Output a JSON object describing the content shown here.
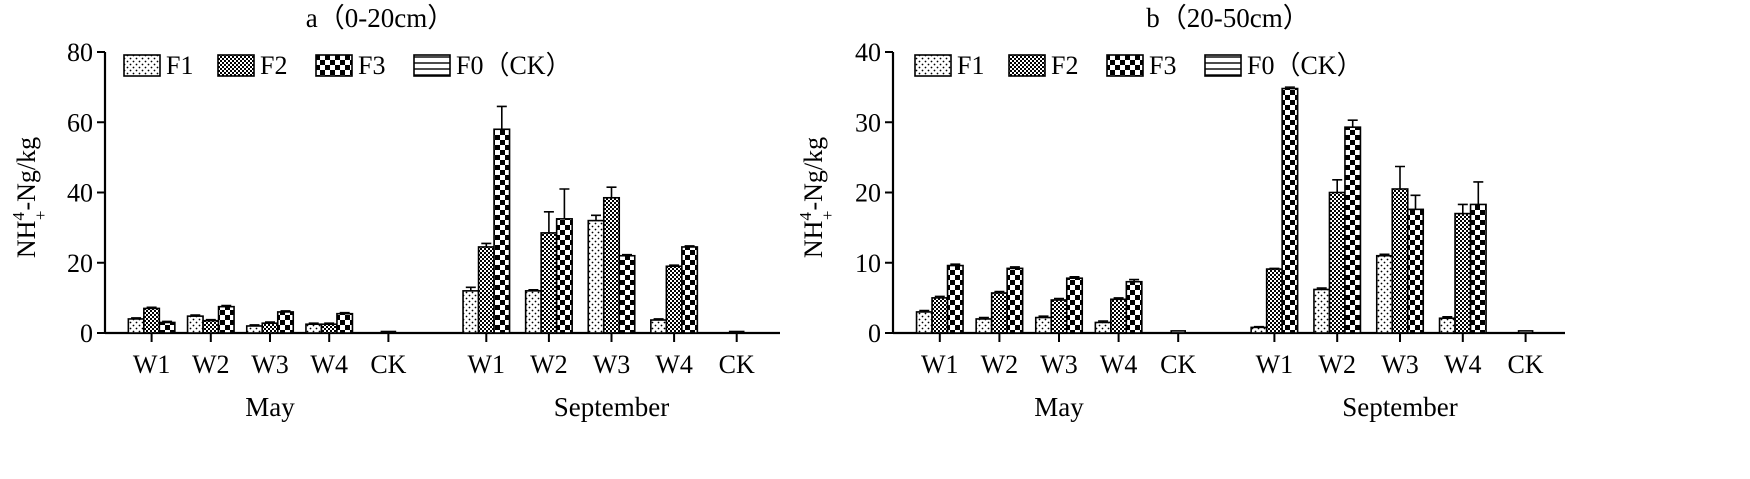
{
  "figure": {
    "legend_note": ""
  },
  "chart_data": [
    {
      "type": "bar",
      "title": "a（0-20cm）",
      "ylabel_main": "NH",
      "ylabel_sup": "4",
      "ylabel_sub": "+",
      "ylabel_tail": "-Ng/kg",
      "ylim": [
        0,
        80
      ],
      "yticks": [
        0,
        20,
        40,
        60,
        80
      ],
      "groups": [
        {
          "label": "May",
          "categories": [
            "W1",
            "W2",
            "W3",
            "W4",
            "CK"
          ]
        },
        {
          "label": "September",
          "categories": [
            "W1",
            "W2",
            "W3",
            "W4",
            "CK"
          ]
        }
      ],
      "series": [
        {
          "name": "F1",
          "pattern": "dots",
          "values": [
            4.0,
            4.8,
            2.0,
            2.5,
            null,
            12.0,
            12.0,
            32.0,
            3.7,
            null
          ],
          "errors": [
            0.3,
            0.3,
            0.3,
            0.3,
            null,
            1.0,
            0.3,
            1.5,
            0.3,
            null
          ]
        },
        {
          "name": "F2",
          "pattern": "fine-check",
          "values": [
            7.0,
            3.5,
            2.8,
            2.5,
            null,
            24.5,
            28.5,
            38.5,
            19.0,
            null
          ],
          "errors": [
            0.3,
            0.3,
            0.3,
            0.3,
            null,
            1.0,
            6.0,
            3.0,
            0.3,
            null
          ]
        },
        {
          "name": "F3",
          "pattern": "checker",
          "values": [
            3.0,
            7.5,
            6.0,
            5.5,
            null,
            58.0,
            32.5,
            22.0,
            24.5,
            null
          ],
          "errors": [
            0.3,
            0.3,
            0.3,
            0.3,
            null,
            6.5,
            8.5,
            0.3,
            0.3,
            null
          ]
        },
        {
          "name": "F0（CK）",
          "pattern": "hline",
          "values": [
            null,
            null,
            null,
            null,
            0.3,
            null,
            null,
            null,
            null,
            0.3
          ],
          "errors": [
            null,
            null,
            null,
            null,
            0,
            null,
            null,
            null,
            null,
            0
          ]
        }
      ]
    },
    {
      "type": "bar",
      "title": "b（20-50cm）",
      "ylabel_main": "NH",
      "ylabel_sup": "4",
      "ylabel_sub": "+",
      "ylabel_tail": "-Ng/kg",
      "ylim": [
        0,
        40
      ],
      "yticks": [
        0,
        10,
        20,
        30,
        40
      ],
      "groups": [
        {
          "label": "May",
          "categories": [
            "W1",
            "W2",
            "W3",
            "W4",
            "CK"
          ]
        },
        {
          "label": "September",
          "categories": [
            "W1",
            "W2",
            "W3",
            "W4",
            "CK"
          ]
        }
      ],
      "series": [
        {
          "name": "F1",
          "pattern": "dots",
          "values": [
            3.0,
            2.0,
            2.2,
            1.5,
            null,
            0.8,
            6.2,
            11.0,
            2.1,
            null
          ],
          "errors": [
            0.2,
            0.2,
            0.2,
            0.2,
            null,
            0.1,
            0.2,
            0.2,
            0.2,
            null
          ]
        },
        {
          "name": "F2",
          "pattern": "fine-check",
          "values": [
            5.0,
            5.7,
            4.7,
            4.8,
            null,
            9.1,
            20.0,
            20.5,
            17.0,
            null
          ],
          "errors": [
            0.2,
            0.2,
            0.2,
            0.2,
            null,
            0.1,
            1.8,
            3.2,
            1.3,
            null
          ]
        },
        {
          "name": "F3",
          "pattern": "checker",
          "values": [
            9.6,
            9.2,
            7.8,
            7.3,
            null,
            34.8,
            29.3,
            17.6,
            18.3,
            null
          ],
          "errors": [
            0.2,
            0.2,
            0.2,
            0.3,
            null,
            0.2,
            1.0,
            2.0,
            3.2,
            null
          ]
        },
        {
          "name": "F0（CK）",
          "pattern": "hline",
          "values": [
            null,
            null,
            null,
            null,
            0.3,
            null,
            null,
            null,
            null,
            0.3
          ],
          "errors": [
            null,
            null,
            null,
            null,
            0,
            null,
            null,
            null,
            null,
            0
          ]
        }
      ]
    }
  ]
}
